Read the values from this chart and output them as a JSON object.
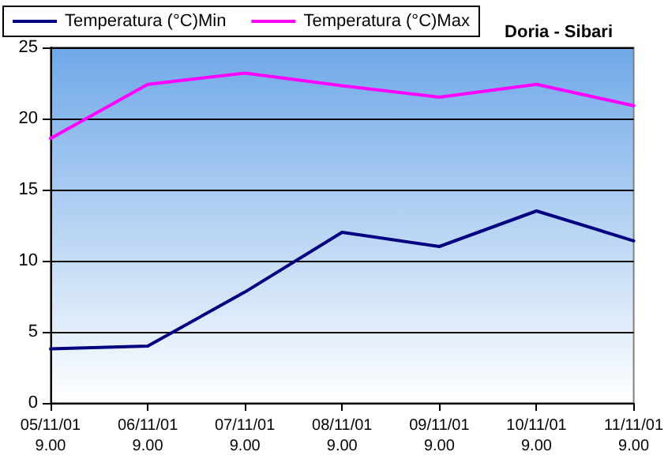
{
  "chart_data": {
    "type": "line",
    "title": "Doria - Sibari",
    "categories": [
      "05/11/01\n9.00",
      "06/11/01\n9.00",
      "07/11/01\n9.00",
      "08/11/01\n9.00",
      "09/11/01\n9.00",
      "10/11/01\n9.00",
      "11/11/01\n9.00"
    ],
    "series": [
      {
        "name": "Temperatura (°C)Min",
        "color": "#000080",
        "values": [
          3.8,
          4.0,
          7.8,
          12.0,
          11.0,
          13.5,
          11.4
        ]
      },
      {
        "name": "Temperatura (°C)Max",
        "color": "#ff00ff",
        "values": [
          18.6,
          22.4,
          23.2,
          22.3,
          21.5,
          22.4,
          20.9
        ]
      }
    ],
    "ylim": [
      0,
      25
    ],
    "yticks": [
      0,
      5,
      10,
      15,
      20,
      25
    ],
    "grid": "y",
    "legend": "top left",
    "marker": "none",
    "line_style": "solid"
  }
}
